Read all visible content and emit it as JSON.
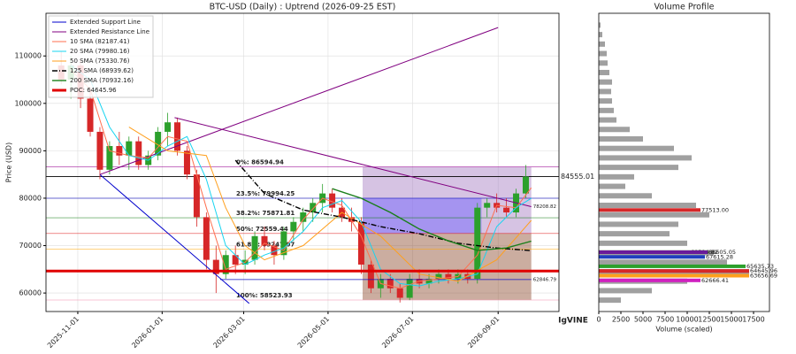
{
  "chart_data": [
    {
      "type": "candlestick",
      "title": "BTC-USD (Daily) : Uptrend (2026-09-25 EST)",
      "y_label": "Price (USD)",
      "xlim": [
        "2025-10-09",
        "2026-10-15"
      ],
      "xticks": [
        "2025-11-01",
        "2026-01-01",
        "2026-03-01",
        "2026-05-01",
        "2026-07-01",
        "2026-09-01"
      ],
      "ylim": [
        56100,
        119000
      ],
      "yticks": [
        60000,
        70000,
        80000,
        90000,
        100000,
        110000
      ],
      "grid": true,
      "legend": "upper left",
      "up_color": "#2ca02c",
      "down_color": "#d62728",
      "x": [
        "2025-10-20",
        "2025-10-27",
        "2025-11-03",
        "2025-11-10",
        "2025-11-17",
        "2025-11-24",
        "2025-12-01",
        "2025-12-08",
        "2025-12-15",
        "2025-12-22",
        "2025-12-29",
        "2026-01-05",
        "2026-01-12",
        "2026-01-19",
        "2026-01-26",
        "2026-02-02",
        "2026-02-09",
        "2026-02-16",
        "2026-02-23",
        "2026-03-02",
        "2026-03-09",
        "2026-03-16",
        "2026-03-23",
        "2026-03-30",
        "2026-04-06",
        "2026-04-13",
        "2026-04-20",
        "2026-04-27",
        "2026-05-04",
        "2026-05-11",
        "2026-05-18",
        "2026-05-25",
        "2026-06-01",
        "2026-06-08",
        "2026-06-15",
        "2026-06-22",
        "2026-06-29",
        "2026-07-06",
        "2026-07-13",
        "2026-07-20",
        "2026-07-27",
        "2026-08-03",
        "2026-08-10",
        "2026-08-17",
        "2026-08-24",
        "2026-08-31",
        "2026-09-07",
        "2026-09-14",
        "2026-09-21"
      ],
      "open": [
        108000,
        105000,
        108000,
        101000,
        94000,
        86000,
        91000,
        89000,
        92000,
        87000,
        89000,
        94000,
        96000,
        90000,
        85000,
        76000,
        67000,
        64000,
        68000,
        66000,
        67000,
        72000,
        70000,
        68000,
        73000,
        75000,
        77000,
        79000,
        81000,
        78000,
        76000,
        75000,
        66000,
        61000,
        63000,
        61000,
        59000,
        63000,
        62000,
        63000,
        64000,
        63000,
        64000,
        63000,
        78000,
        79000,
        78000,
        77000,
        81000
      ],
      "high": [
        111000,
        110000,
        109000,
        103000,
        95000,
        92000,
        94000,
        93000,
        93000,
        90000,
        95000,
        98000,
        97000,
        91000,
        86000,
        77000,
        70000,
        69000,
        70000,
        69000,
        73000,
        74000,
        71000,
        74000,
        76000,
        78000,
        80000,
        83000,
        82000,
        80000,
        78000,
        76000,
        67000,
        64000,
        64000,
        62000,
        64000,
        65000,
        64000,
        65000,
        65000,
        65000,
        65000,
        79000,
        80000,
        81000,
        80000,
        82000,
        87000
      ],
      "low": [
        104000,
        101000,
        99000,
        93000,
        84000,
        85000,
        87000,
        86000,
        86000,
        86000,
        88000,
        91000,
        89000,
        84000,
        74000,
        65000,
        60000,
        63000,
        64000,
        64000,
        66000,
        69000,
        66000,
        67000,
        71000,
        73000,
        75000,
        77000,
        77000,
        75000,
        73000,
        64000,
        60000,
        59000,
        60000,
        58000,
        58500,
        61000,
        61000,
        62000,
        62000,
        62000,
        62000,
        62000,
        76000,
        77000,
        76000,
        76000,
        80000
      ],
      "close": [
        105000,
        108000,
        101000,
        94000,
        86000,
        91000,
        89000,
        92000,
        87000,
        89000,
        94000,
        96000,
        90000,
        85000,
        76000,
        67000,
        64000,
        68000,
        66000,
        67000,
        72000,
        70000,
        68000,
        73000,
        75000,
        77000,
        79000,
        81000,
        78000,
        76000,
        75000,
        66000,
        61000,
        63000,
        61000,
        59000,
        63000,
        62000,
        63000,
        64000,
        63000,
        64000,
        63000,
        78000,
        79000,
        78000,
        77000,
        81000,
        84555
      ],
      "zones": [
        {
          "x": [
            "2026-05-26",
            "2026-09-25"
          ],
          "values": [
            86594.94,
            72559.44
          ],
          "color": "#a57ac0"
        },
        {
          "x": [
            "2026-05-26",
            "2026-09-25"
          ],
          "values": [
            72559.44,
            58523.93
          ],
          "color": "#8c4a2c"
        },
        {
          "x": [
            "2026-05-26",
            "2026-08-20"
          ],
          "values": [
            80000,
            72559.44
          ],
          "color": "#6a5cff"
        }
      ],
      "series": [
        {
          "name": "Extended Support Line",
          "color": "#0000cc",
          "width": 1,
          "x": [
            "2025-11-17",
            "2026-03-05"
          ],
          "values": [
            85000,
            57800
          ]
        },
        {
          "name": "Extended Resistance Line",
          "color": "#800080",
          "width": 1,
          "x": [
            "2025-11-17",
            "2026-09-01",
            "2026-09-01",
            "2026-01-10",
            "2026-09-25"
          ],
          "values": [
            85000,
            116000,
            null,
            97000,
            78208.82
          ]
        },
        {
          "name": "10 SMA (82187.41)",
          "color": "#ff6f4f",
          "width": 1,
          "x": [
            "2025-10-27",
            "2025-11-10",
            "2025-11-24",
            "2025-12-08",
            "2025-12-22",
            "2026-01-05",
            "2026-01-19",
            "2026-02-02",
            "2026-02-16",
            "2026-03-02",
            "2026-03-16",
            "2026-03-30",
            "2026-04-13",
            "2026-04-27",
            "2026-05-11",
            "2026-05-25",
            "2026-06-08",
            "2026-06-22",
            "2026-07-06",
            "2026-07-20",
            "2026-08-03",
            "2026-08-17",
            "2026-08-31",
            "2026-09-14",
            "2026-09-25"
          ],
          "values": [
            107000,
            103000,
            90000,
            89000,
            88500,
            93000,
            92000,
            78000,
            65000,
            66500,
            70500,
            69000,
            75500,
            80000,
            78500,
            72000,
            62000,
            61000,
            62500,
            63000,
            63500,
            68000,
            78500,
            78000,
            82187.41
          ]
        },
        {
          "name": "20 SMA (79980.16)",
          "color": "#17d4f0",
          "width": 1,
          "x": [
            "2025-10-27",
            "2025-11-10",
            "2025-11-24",
            "2025-12-08",
            "2025-12-22",
            "2026-01-05",
            "2026-01-19",
            "2026-02-02",
            "2026-02-16",
            "2026-03-02",
            "2026-03-16",
            "2026-03-30",
            "2026-04-13",
            "2026-04-27",
            "2026-05-11",
            "2026-05-25",
            "2026-06-08",
            "2026-06-22",
            "2026-07-06",
            "2026-07-20",
            "2026-08-03",
            "2026-08-17",
            "2026-08-31",
            "2026-09-14",
            "2026-09-25"
          ],
          "values": [
            108000,
            105000,
            95000,
            89000,
            88000,
            91000,
            93000,
            84000,
            70000,
            66000,
            68000,
            69500,
            73000,
            78000,
            79500,
            75000,
            65000,
            62000,
            61500,
            62500,
            63000,
            64000,
            74000,
            78000,
            79980.16
          ]
        },
        {
          "name": "50 SMA (75330.76)",
          "color": "#ff9f1c",
          "width": 1,
          "x": [
            "2025-12-08",
            "2026-01-05",
            "2026-02-02",
            "2026-02-16",
            "2026-03-02",
            "2026-03-16",
            "2026-04-13",
            "2026-05-11",
            "2026-06-08",
            "2026-07-06",
            "2026-08-03",
            "2026-08-31",
            "2026-09-25"
          ],
          "values": [
            95000,
            90000,
            89000,
            78000,
            70000,
            67000,
            70000,
            77000,
            72000,
            64000,
            62500,
            67000,
            75330.76
          ]
        },
        {
          "name": "125 SMA (68939.62)",
          "color": "#000000",
          "width": 1.4,
          "style": "dashdot",
          "x": [
            "2026-02-23",
            "2026-03-16",
            "2026-04-13",
            "2026-05-11",
            "2026-06-08",
            "2026-07-06",
            "2026-08-03",
            "2026-08-31",
            "2026-09-25"
          ],
          "values": [
            88000,
            81000,
            77500,
            76000,
            74000,
            72500,
            70500,
            69500,
            68939.62
          ]
        },
        {
          "name": "200 SMA (70932.16)",
          "color": "#1a7f1a",
          "width": 1.4,
          "x": [
            "2026-05-04",
            "2026-05-25",
            "2026-06-15",
            "2026-07-06",
            "2026-07-27",
            "2026-08-17",
            "2026-09-07",
            "2026-09-25"
          ],
          "values": [
            82000,
            80000,
            77000,
            73500,
            71000,
            69000,
            69500,
            70932.16
          ]
        },
        {
          "name": "POC: 64645.96",
          "color": "#e00000",
          "width": 3,
          "level": 64645.96
        }
      ],
      "levels": [
        {
          "label": "0%: 86594.94",
          "value": 86594.94,
          "color": "#a0149a"
        },
        {
          "label": "23.5%: 79994.25",
          "value": 79994.25,
          "color": "#1010c0"
        },
        {
          "label": "38.2%: 75871.81",
          "value": 75871.81,
          "color": "#0a7a0a"
        },
        {
          "label": "50%: 72559.44",
          "value": 72559.44,
          "color": "#e01010"
        },
        {
          "label": "61.8%: 69247.07",
          "value": 69247.07,
          "color": "#ffa500"
        },
        {
          "label": "100%: 58523.93",
          "value": 58523.93,
          "color": "#f4a0b8"
        }
      ],
      "price_line": 84555.01,
      "annotations": [
        {
          "value": 78208.82,
          "x": "2026-09-25",
          "color": "#1010c0"
        },
        {
          "value": 62846.79,
          "x": [
            "2026-02-12",
            "2026-09-25"
          ],
          "color": "#1010c0"
        }
      ],
      "logo": "IgVINE"
    },
    {
      "type": "hbar",
      "title": "Volume Profile",
      "x_label": "Volume (scaled)",
      "color": "#a0a0a0",
      "xlim": [
        0,
        19300
      ],
      "xticks": [
        0,
        2500,
        5000,
        7500,
        10000,
        12500,
        15000,
        17500
      ],
      "ylim": [
        56100,
        119000
      ],
      "y": [
        116500,
        114500,
        112500,
        110500,
        108500,
        106500,
        104500,
        102500,
        100500,
        98500,
        96500,
        94500,
        92500,
        90500,
        88500,
        86500,
        84500,
        82500,
        80500,
        78500,
        76500,
        74500,
        72500,
        70500,
        68500,
        66500,
        64500,
        62500,
        60500,
        58500
      ],
      "values": [
        200,
        400,
        700,
        900,
        1000,
        1200,
        1500,
        1400,
        1500,
        1700,
        2000,
        3500,
        5000,
        8500,
        10500,
        9000,
        4000,
        3000,
        6000,
        11000,
        12500,
        9000,
        8000,
        10000,
        13000,
        14500,
        17000,
        10000,
        6000,
        2500
      ],
      "highlights": [
        {
          "value": 77513,
          "label": "77513.00",
          "volume": 11500,
          "color": "#d62728"
        },
        {
          "value": 68594.82,
          "volume": 10300,
          "color": "#b0b0b0"
        },
        {
          "value": 68605.05,
          "volume": 12300,
          "color": "#6a1b9a"
        },
        {
          "value": 67615.28,
          "volume": 12000,
          "color": "#1f3fbf"
        },
        {
          "value": 65635.73,
          "volume": 16600,
          "color": "#2ca02c"
        },
        {
          "value": 64645.96,
          "volume": 17000,
          "color": "#d62728"
        },
        {
          "value": 63656.69,
          "volume": 17000,
          "color": "#ff9f1c"
        },
        {
          "value": 62666.41,
          "volume": 11500,
          "color": "#d020c0"
        }
      ]
    }
  ]
}
